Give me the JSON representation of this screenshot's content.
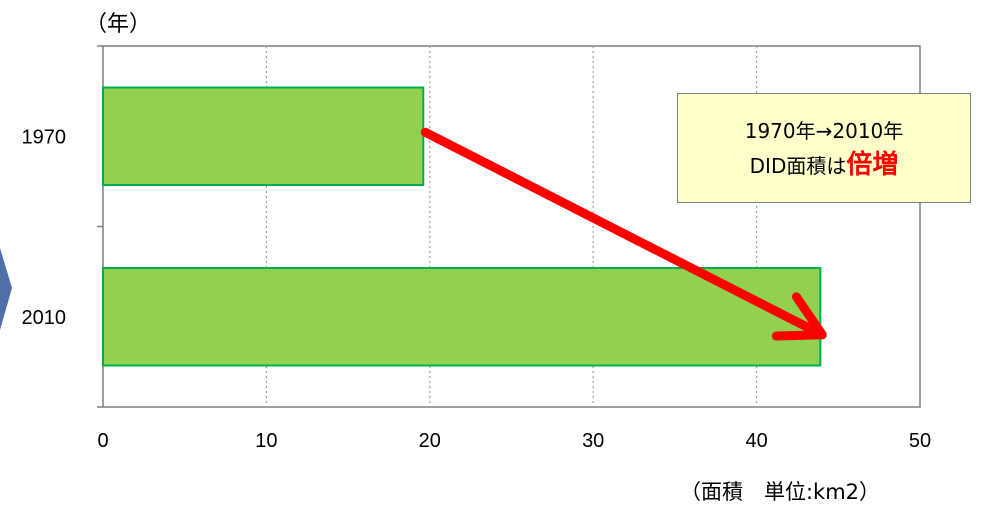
{
  "chart_data": {
    "type": "bar",
    "orientation": "horizontal",
    "categories": [
      "1970",
      "2010"
    ],
    "values": [
      19.6,
      43.9
    ],
    "xlim": [
      0,
      50
    ],
    "xticks": [
      0,
      10,
      20,
      30,
      40,
      50
    ],
    "ylabel": "（年）",
    "xlabel": "（面積　単位:km2）",
    "grid": "vertical-dotted",
    "bar_color": "#92d050",
    "bar_border_color": "#00b050",
    "arrow_color": "#ff0000",
    "callout": {
      "line1": "1970年→2010年",
      "line2_prefix": "DID面積は",
      "line2_emphasis": "倍増"
    }
  },
  "decoration": {
    "left_chevron_color": "#4f6fa8"
  }
}
